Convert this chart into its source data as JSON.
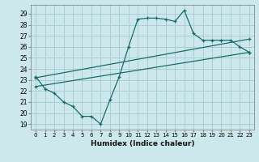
{
  "title": "",
  "xlabel": "Humidex (Indice chaleur)",
  "ylabel": "",
  "background_color": "#cce8ec",
  "grid_color": "#aacdd4",
  "line_color": "#1a6b6b",
  "ylim": [
    18.5,
    29.8
  ],
  "xlim": [
    -0.5,
    23.5
  ],
  "yticks": [
    19,
    20,
    21,
    22,
    23,
    24,
    25,
    26,
    27,
    28,
    29
  ],
  "xticks": [
    0,
    1,
    2,
    3,
    4,
    5,
    6,
    7,
    8,
    9,
    10,
    11,
    12,
    13,
    14,
    15,
    16,
    17,
    18,
    19,
    20,
    21,
    22,
    23
  ],
  "series1_x": [
    0,
    1,
    2,
    3,
    4,
    5,
    6,
    7,
    8,
    9,
    10,
    11,
    12,
    13,
    14,
    15,
    16,
    17,
    18,
    19,
    20,
    21,
    22,
    23
  ],
  "series1_y": [
    23.3,
    22.2,
    21.8,
    21.0,
    20.6,
    19.7,
    19.7,
    19.0,
    21.2,
    23.3,
    26.0,
    28.5,
    28.6,
    28.6,
    28.5,
    28.3,
    29.3,
    27.2,
    26.6,
    26.6,
    26.6,
    26.6,
    26.0,
    25.5
  ],
  "series2_x": [
    0,
    23
  ],
  "series2_y": [
    23.2,
    26.7
  ],
  "series3_x": [
    0,
    23
  ],
  "series3_y": [
    22.4,
    25.5
  ],
  "marker": "+"
}
